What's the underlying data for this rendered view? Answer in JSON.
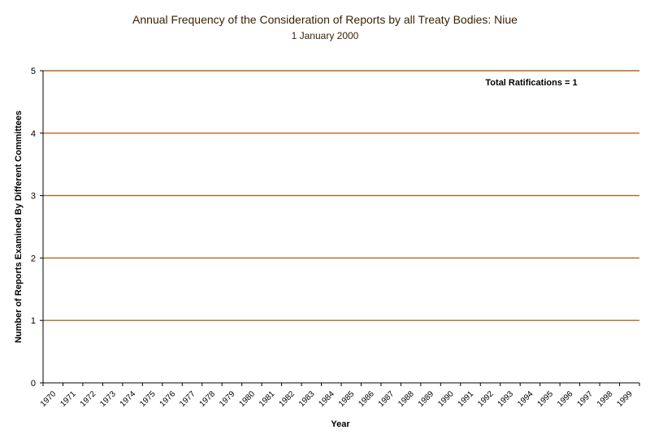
{
  "chart_data": {
    "type": "bar",
    "title": "Annual Frequency of the Consideration of Reports by all Treaty Bodies: Niue",
    "subtitle": "1 January 2000",
    "xlabel": "Year",
    "ylabel": "Number of Reports Examined By Different Committees",
    "categories": [
      "1970",
      "1971",
      "1972",
      "1973",
      "1974",
      "1975",
      "1976",
      "1977",
      "1978",
      "1979",
      "1980",
      "1981",
      "1982",
      "1983",
      "1984",
      "1985",
      "1986",
      "1987",
      "1988",
      "1989",
      "1990",
      "1991",
      "1992",
      "1993",
      "1994",
      "1995",
      "1996",
      "1997",
      "1998",
      "1999"
    ],
    "values": [
      0,
      0,
      0,
      0,
      0,
      0,
      0,
      0,
      0,
      0,
      0,
      0,
      0,
      0,
      0,
      0,
      0,
      0,
      0,
      0,
      0,
      0,
      0,
      0,
      0,
      0,
      0,
      0,
      0,
      0
    ],
    "ylim": [
      0,
      5
    ],
    "yticks": [
      0,
      1,
      2,
      3,
      4,
      5
    ],
    "grid": true,
    "annotation": "Total Ratifications = 1",
    "colors": {
      "gridline": "#b5651d",
      "axis": "#000000",
      "title": "#3a1f00"
    }
  }
}
